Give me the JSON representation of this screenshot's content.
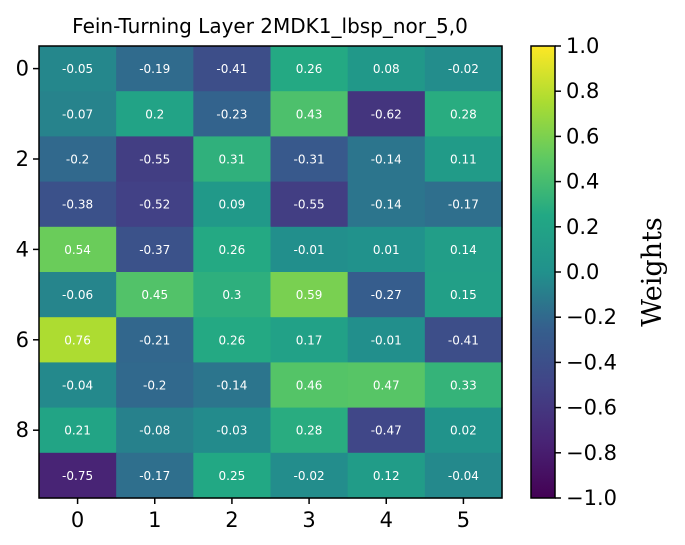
{
  "chart_data": {
    "type": "heatmap",
    "title": "Fein-Turning Layer 2MDK1_lbsp_nor_5,0",
    "colorbar_label": "Weights",
    "colormap": "viridis",
    "vmin": -1.0,
    "vmax": 1.0,
    "x_ticks": [
      "0",
      "1",
      "2",
      "3",
      "4",
      "5"
    ],
    "y_ticks": [
      "0",
      "2",
      "4",
      "6",
      "8"
    ],
    "colorbar_ticks": [
      "1.0",
      "0.8",
      "0.6",
      "0.4",
      "0.2",
      "0.0",
      "−0.2",
      "−0.4",
      "−0.6",
      "−0.8",
      "−1.0"
    ],
    "rows": 10,
    "cols": 6,
    "values": [
      [
        -0.05,
        -0.19,
        -0.41,
        0.26,
        0.08,
        -0.02
      ],
      [
        -0.07,
        0.2,
        -0.23,
        0.43,
        -0.62,
        0.28
      ],
      [
        -0.2,
        -0.55,
        0.31,
        -0.31,
        -0.14,
        0.11
      ],
      [
        -0.38,
        -0.52,
        0.09,
        -0.55,
        -0.14,
        -0.17
      ],
      [
        0.54,
        -0.37,
        0.26,
        -0.01,
        0.01,
        0.14
      ],
      [
        -0.06,
        0.45,
        0.3,
        0.59,
        -0.27,
        0.15
      ],
      [
        0.76,
        -0.21,
        0.26,
        0.17,
        -0.01,
        -0.41
      ],
      [
        -0.04,
        -0.2,
        -0.14,
        0.46,
        0.47,
        0.33
      ],
      [
        0.21,
        -0.08,
        -0.03,
        0.28,
        -0.47,
        0.02
      ],
      [
        -0.75,
        -0.17,
        0.25,
        -0.02,
        0.12,
        -0.04
      ]
    ]
  }
}
